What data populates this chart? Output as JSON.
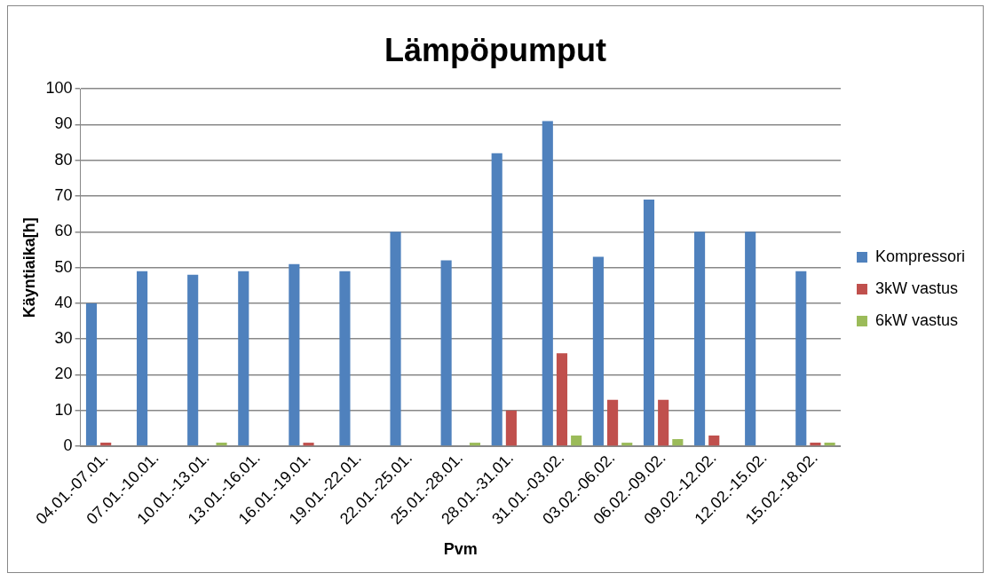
{
  "chart_data": {
    "type": "bar",
    "title": "Lämpöpumput",
    "xlabel": "Pvm",
    "ylabel": "Käyntiaika[h]",
    "categories": [
      "04.01.-07.01.",
      "07.01.-10.01.",
      "10.01.-13.01.",
      "13.01.-16.01.",
      "16.01.-19.01.",
      "19.01.-22.01.",
      "22.01.-25.01.",
      "25.01.-28.01.",
      "28.01.-31.01.",
      "31.01.-03.02.",
      "03.02.-06.02.",
      "06.02.-09.02.",
      "09.02.-12.02.",
      "12.02.-15.02.",
      "15.02.-18.02."
    ],
    "series": [
      {
        "name": "Kompressori",
        "color": "#4f81bd",
        "values": [
          40,
          49,
          48,
          49,
          51,
          49,
          60,
          52,
          82,
          91,
          53,
          69,
          60,
          60,
          49
        ]
      },
      {
        "name": "3kW vastus",
        "color": "#c0504d",
        "values": [
          1,
          0,
          0,
          0,
          1,
          0,
          0,
          0,
          10,
          26,
          13,
          13,
          3,
          0,
          1
        ]
      },
      {
        "name": "6kW vastus",
        "color": "#9bbb59",
        "values": [
          0,
          0,
          1,
          0,
          0,
          0,
          0,
          1,
          0,
          3,
          1,
          2,
          0,
          0,
          1
        ]
      }
    ],
    "ylim": [
      0,
      100
    ],
    "yticks": [
      0,
      10,
      20,
      30,
      40,
      50,
      60,
      70,
      80,
      90,
      100
    ],
    "grid": "y",
    "legend": "right"
  }
}
